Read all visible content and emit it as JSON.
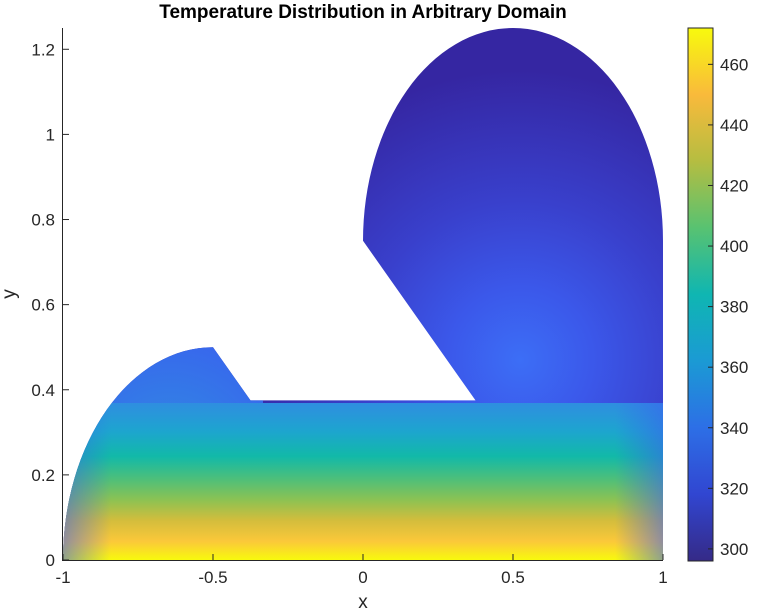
{
  "chart_data": {
    "type": "heatmap",
    "title": "Temperature Distribution in Arbitrary Domain",
    "xlabel": "x",
    "ylabel": "y",
    "xlim": [
      -1,
      1
    ],
    "ylim": [
      0,
      1.25
    ],
    "xticks": [
      -1,
      -0.5,
      0,
      0.5,
      1
    ],
    "xtick_labels": [
      "-1",
      "-0.5",
      "0",
      "0.5",
      "1"
    ],
    "yticks": [
      0,
      0.2,
      0.4,
      0.6,
      0.8,
      1,
      1.2
    ],
    "ytick_labels": [
      "0",
      "0.2",
      "0.4",
      "0.6",
      "0.8",
      "1",
      "1.2"
    ],
    "colorbar": {
      "range": [
        296,
        472
      ],
      "ticks": [
        300,
        320,
        340,
        360,
        380,
        400,
        420,
        440,
        460
      ],
      "tick_labels": [
        "300",
        "320",
        "340",
        "360",
        "380",
        "400",
        "420",
        "440",
        "460"
      ],
      "colormap": "parula"
    },
    "domain_boundary": [
      {
        "x": -1,
        "y": 0
      },
      {
        "x": 1,
        "y": 0
      },
      {
        "x": 1,
        "y": 0.75
      },
      {
        "x": 0.5,
        "y": 1.25,
        "note": "top of upper arc"
      },
      {
        "x": 0,
        "y": 0.75
      },
      {
        "x": 0.375,
        "y": 0.375
      },
      {
        "x": -0.375,
        "y": 0.375
      },
      {
        "x": -0.5,
        "y": 0.5
      },
      {
        "x": -1,
        "y": 0
      }
    ],
    "field_samples": [
      {
        "x": 0,
        "y": 0,
        "value": 470
      },
      {
        "x": 0,
        "y": 0.1,
        "value": 420
      },
      {
        "x": 0,
        "y": 0.2,
        "value": 390
      },
      {
        "x": 0,
        "y": 0.3,
        "value": 365
      },
      {
        "x": 0,
        "y": 0.375,
        "value": 350
      },
      {
        "x": 0.5,
        "y": 0.5,
        "value": 335
      },
      {
        "x": 0.7,
        "y": 0.8,
        "value": 320
      },
      {
        "x": 0.5,
        "y": 1.2,
        "value": 300
      },
      {
        "x": -0.8,
        "y": 0.35,
        "value": 340
      },
      {
        "x": 1,
        "y": 0.05,
        "value": 330
      }
    ]
  }
}
